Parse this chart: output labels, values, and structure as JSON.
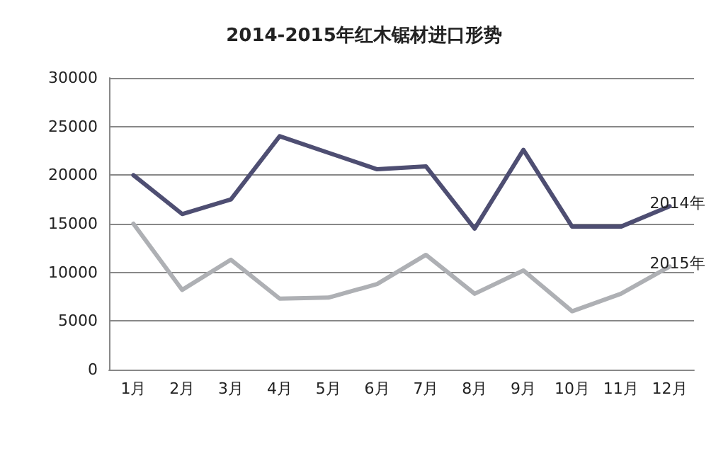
{
  "chart_data": {
    "type": "line",
    "title": "2014-2015年红木锯材进口形势",
    "categories": [
      "1月",
      "2月",
      "3月",
      "4月",
      "5月",
      "6月",
      "7月",
      "8月",
      "9月",
      "10月",
      "11月",
      "12月"
    ],
    "series": [
      {
        "name": "2014年",
        "color": "#4e4e72",
        "values": [
          20000,
          16000,
          17500,
          24000,
          22300,
          20600,
          20900,
          14500,
          22600,
          14700,
          14700,
          16800
        ]
      },
      {
        "name": "2015年",
        "color": "#aeb0b4",
        "values": [
          15000,
          8200,
          11300,
          7300,
          7400,
          8800,
          11800,
          7800,
          10200,
          6000,
          7800,
          10600
        ]
      }
    ],
    "ylim": [
      0,
      30000
    ],
    "yticks": [
      0,
      5000,
      10000,
      15000,
      20000,
      25000,
      30000
    ],
    "grid": "y",
    "legend": false,
    "marker": "none",
    "line_style": "solid"
  }
}
